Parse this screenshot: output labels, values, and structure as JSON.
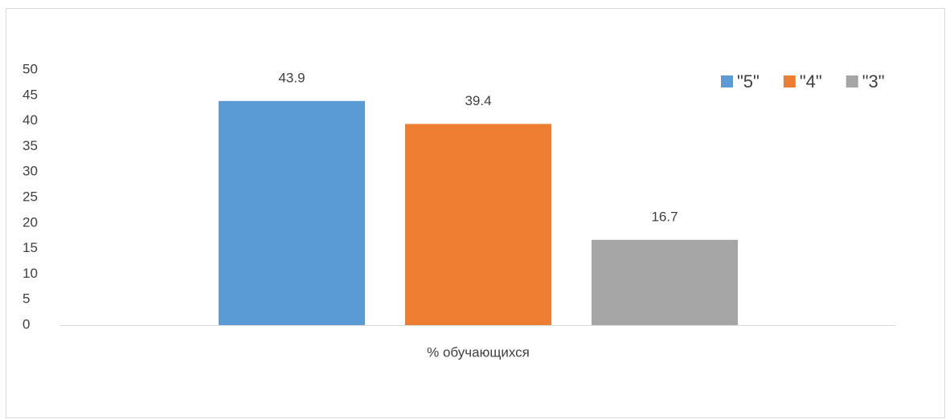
{
  "chart_data": {
    "type": "bar",
    "categories": [
      "% обучающихся"
    ],
    "series": [
      {
        "name": "\"5\"",
        "color": "#5b9bd5",
        "values": [
          43.9
        ]
      },
      {
        "name": "\"4\"",
        "color": "#ed7d31",
        "values": [
          39.4
        ]
      },
      {
        "name": "\"3\"",
        "color": "#a5a5a5",
        "values": [
          16.7
        ]
      }
    ],
    "ylim": [
      0,
      50
    ],
    "yticks": [
      0,
      5,
      10,
      15,
      20,
      25,
      30,
      35,
      40,
      45,
      50
    ],
    "grid": false,
    "legend": "top-right",
    "data_labels": true
  }
}
